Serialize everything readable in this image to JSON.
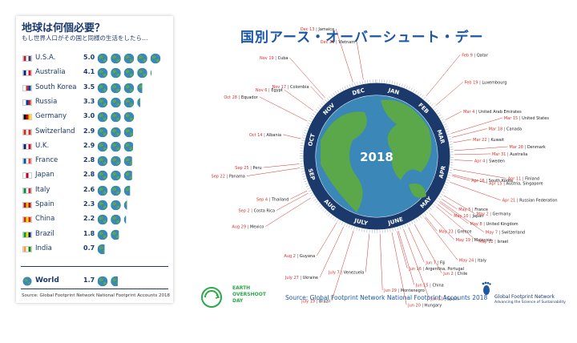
{
  "left": {
    "title": "地球は何個必要？",
    "subtitle": "もし世界人口がその国と同様の生活をしたら…",
    "source": "Source: Global Footprint Network National Footprint Accounts 2018",
    "world": {
      "name": "World",
      "value": "1.7"
    }
  },
  "right": {
    "title": "国別アース・オーバーシュート・デー",
    "year": "2018",
    "source": "Source: Global Footprint Network National Footprint Accounts 2018",
    "logo_line1": "EARTH",
    "logo_line2": "OVERSHOOT",
    "logo_line3": "DAY",
    "gfn_line1": "Global Footprint Network",
    "gfn_line2": "Advancing the Science of Sustainability"
  },
  "colors": {
    "navy": "#1b3a6b",
    "accent_red": "#d9302c",
    "ocean": "#3a87b8",
    "land": "#5aa84a",
    "ring": "#1b3a6b"
  },
  "chart_data": [
    {
      "type": "bar",
      "title": "地球は何個必要？",
      "unit": "Earths",
      "categories": [
        "U.S.A.",
        "Australia",
        "South Korea",
        "Russia",
        "Germany",
        "Switzerland",
        "U.K.",
        "France",
        "Japan",
        "Italy",
        "Spain",
        "China",
        "Brazil",
        "India",
        "World"
      ],
      "values": [
        5.0,
        4.1,
        3.5,
        3.3,
        3.0,
        2.9,
        2.9,
        2.8,
        2.8,
        2.6,
        2.3,
        2.2,
        1.8,
        0.7,
        1.7
      ],
      "value_labels": [
        "5.0",
        "4.1",
        "3.5",
        "3.3",
        "3.0",
        "2.9",
        "2.9",
        "2.8",
        "2.8",
        "2.6",
        "2.3",
        "2.2",
        "1.8",
        "0.7",
        "1.7"
      ],
      "flags": [
        [
          "#b22234",
          "#ffffff",
          "#3c3b6e"
        ],
        [
          "#00247d",
          "#ffffff",
          "#cf142b"
        ],
        [
          "#ffffff",
          "#cd2e3a",
          "#0047a0"
        ],
        [
          "#ffffff",
          "#0039a6",
          "#d52b1e"
        ],
        [
          "#000000",
          "#dd0000",
          "#ffce00"
        ],
        [
          "#d52b1e",
          "#ffffff",
          "#d52b1e"
        ],
        [
          "#012169",
          "#ffffff",
          "#c8102e"
        ],
        [
          "#0055a4",
          "#ffffff",
          "#ef4135"
        ],
        [
          "#ffffff",
          "#bc002d",
          "#ffffff"
        ],
        [
          "#009246",
          "#ffffff",
          "#ce2b37"
        ],
        [
          "#aa151b",
          "#f1bf00",
          "#aa151b"
        ],
        [
          "#de2910",
          "#ffde00",
          "#de2910"
        ],
        [
          "#009c3b",
          "#ffdf00",
          "#002776"
        ],
        [
          "#ff9933",
          "#ffffff",
          "#138808"
        ]
      ]
    },
    {
      "type": "radial-timeline",
      "year": "2018",
      "months": [
        "JAN",
        "FEB",
        "MAR",
        "APR",
        "MAY",
        "JUNE",
        "JULY",
        "AUG",
        "SEP",
        "OCT",
        "NOV",
        "DEC"
      ],
      "entries": [
        {
          "date": "Dec 21",
          "country": "Vietnam",
          "doy": 355
        },
        {
          "date": "Dec 13",
          "country": "Jamaica",
          "doy": 347
        },
        {
          "date": "Nov 19",
          "country": "Cuba",
          "doy": 323
        },
        {
          "date": "Nov 17",
          "country": "Colombia",
          "doy": 321
        },
        {
          "date": "Nov 6",
          "country": "Egypt",
          "doy": 310
        },
        {
          "date": "Oct 28",
          "country": "Equador",
          "doy": 301
        },
        {
          "date": "Oct 14",
          "country": "Albania",
          "doy": 287
        },
        {
          "date": "Sep 25",
          "country": "Peru",
          "doy": 268
        },
        {
          "date": "Sep 22",
          "country": "Panama",
          "doy": 265
        },
        {
          "date": "Sep 4",
          "country": "Thailand",
          "doy": 247
        },
        {
          "date": "Sep 2",
          "country": "Costa Rica",
          "doy": 245
        },
        {
          "date": "Aug 29",
          "country": "Mexico",
          "doy": 241
        },
        {
          "date": "Aug 2",
          "country": "Guyana",
          "doy": 214
        },
        {
          "date": "July 27",
          "country": "Ukraine",
          "doy": 208
        },
        {
          "date": "July 19",
          "country": "Brazil",
          "doy": 200
        },
        {
          "date": "July 7",
          "country": "Venezuela",
          "doy": 188
        },
        {
          "date": "Jun 29",
          "country": "Montenegro",
          "doy": 180
        },
        {
          "date": "Jun 20",
          "country": "Hungary",
          "doy": 171
        },
        {
          "date": "Jun 16",
          "country": "Argentina, Portugal",
          "doy": 167
        },
        {
          "date": "Jun 15",
          "country": "China",
          "doy": 166
        },
        {
          "date": "Jun 11",
          "country": "Spain",
          "doy": 162
        },
        {
          "date": "Jun 7",
          "country": "Fiji",
          "doy": 158
        },
        {
          "date": "Jun 2",
          "country": "Chile",
          "doy": 153
        },
        {
          "date": "May 24",
          "country": "Italy",
          "doy": 144
        },
        {
          "date": "May 23",
          "country": "Greece",
          "doy": 143
        },
        {
          "date": "May 19",
          "country": "Malaysia",
          "doy": 139
        },
        {
          "date": "May 12",
          "country": "Israel",
          "doy": 132
        },
        {
          "date": "May 10",
          "country": "Japan",
          "doy": 130
        },
        {
          "date": "May 8",
          "country": "United Kingdom",
          "doy": 128
        },
        {
          "date": "May 7",
          "country": "Switzerland",
          "doy": 127
        },
        {
          "date": "May 5",
          "country": "France",
          "doy": 125
        },
        {
          "date": "May 2",
          "country": "Germany",
          "doy": 122
        },
        {
          "date": "Apr 21",
          "country": "Russian Federation",
          "doy": 111
        },
        {
          "date": "Apr 16",
          "country": "South Korea",
          "doy": 106
        },
        {
          "date": "Apr 15",
          "country": "Austria, Singapore",
          "doy": 105
        },
        {
          "date": "Apr 11",
          "country": "Finland",
          "doy": 101
        },
        {
          "date": "Apr 4",
          "country": "Sweden",
          "doy": 94
        },
        {
          "date": "Mar 31",
          "country": "Australia",
          "doy": 90
        },
        {
          "date": "Mar 28",
          "country": "Denmark",
          "doy": 87
        },
        {
          "date": "Mar 22",
          "country": "Kuwait",
          "doy": 81
        },
        {
          "date": "Mar 18",
          "country": "Canada",
          "doy": 77
        },
        {
          "date": "Mar 15",
          "country": "United States",
          "doy": 74
        },
        {
          "date": "Mar 4",
          "country": "United Arab Emirates",
          "doy": 63
        },
        {
          "date": "Feb 19",
          "country": "Luxembourg",
          "doy": 50
        },
        {
          "date": "Feb 9",
          "country": "Qatar",
          "doy": 40
        }
      ]
    }
  ]
}
